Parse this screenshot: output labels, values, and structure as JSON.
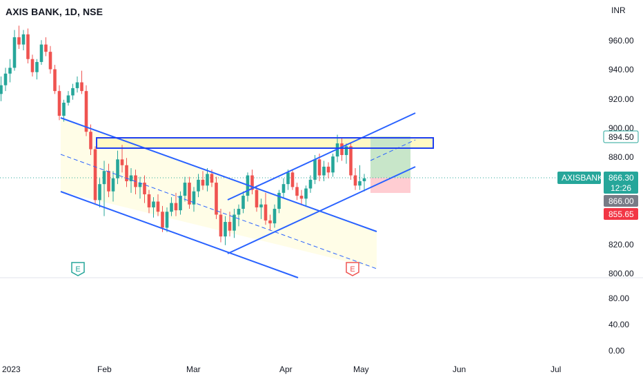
{
  "header": {
    "title": "AXIS BANK, 1D, NSE",
    "currency": "INR"
  },
  "colors": {
    "up": "#26a69a",
    "down": "#ef5350",
    "channel": "#2962ff",
    "zone_fill": "#fff9c4",
    "channel_fill": "#fffde7",
    "target_fill": "#c8e6c9",
    "stop_fill": "#ffcdd2"
  },
  "chart_data": {
    "type": "candlestick",
    "y_axis": {
      "ticks": [
        "960.00",
        "940.00",
        "920.00",
        "900.00",
        "880.00",
        "820.00",
        "800.00"
      ],
      "range": [
        800,
        980
      ]
    },
    "volume_axis": {
      "ticks": [
        "80.00",
        "40.00",
        "0.00"
      ]
    },
    "x_axis": {
      "ticks": [
        "2023",
        "Feb",
        "Mar",
        "Apr",
        "May",
        "Jun",
        "Jul"
      ]
    },
    "price_tags": [
      {
        "label": "894.50",
        "value": 894.5,
        "style": "outline-green"
      },
      {
        "label": "866.30",
        "value": 866.3,
        "style": "green"
      },
      {
        "label": "12:26",
        "value": 862.0,
        "style": "green"
      },
      {
        "label": "866.00",
        "value": 858.5,
        "style": "gray"
      },
      {
        "label": "855.65",
        "value": 855.65,
        "style": "red"
      }
    ],
    "symbol_tag": "AXISBANK",
    "earnings_markers": [
      "E",
      "E"
    ],
    "candles": [
      [
        -4,
        913,
        929,
        908,
        924
      ],
      [
        -3,
        924,
        936,
        919,
        930
      ],
      [
        -2,
        930,
        942,
        926,
        938
      ],
      [
        -1,
        938,
        948,
        932,
        942
      ],
      [
        0,
        942,
        968,
        940,
        963
      ],
      [
        1,
        963,
        971,
        955,
        958
      ],
      [
        2,
        958,
        968,
        954,
        965
      ],
      [
        3,
        965,
        969,
        945,
        948
      ],
      [
        4,
        948,
        951,
        936,
        939
      ],
      [
        5,
        939,
        948,
        934,
        946
      ],
      [
        6,
        946,
        961,
        944,
        958
      ],
      [
        7,
        958,
        963,
        950,
        953
      ],
      [
        8,
        953,
        957,
        938,
        941
      ],
      [
        9,
        941,
        944,
        924,
        926
      ],
      [
        10,
        926,
        930,
        906,
        909
      ],
      [
        11,
        909,
        920,
        905,
        918
      ],
      [
        12,
        918,
        926,
        916,
        923
      ],
      [
        13,
        923,
        931,
        920,
        928
      ],
      [
        14,
        928,
        936,
        925,
        932
      ],
      [
        15,
        932,
        940,
        924,
        926
      ],
      [
        16,
        926,
        930,
        895,
        898
      ],
      [
        17,
        898,
        903,
        882,
        886
      ],
      [
        18,
        886,
        888,
        848,
        851
      ],
      [
        19,
        851,
        866,
        846,
        862
      ],
      [
        20,
        862,
        878,
        840,
        871
      ],
      [
        21,
        871,
        876,
        853,
        857
      ],
      [
        22,
        857,
        871,
        850,
        866
      ],
      [
        23,
        866,
        885,
        862,
        879
      ],
      [
        24,
        879,
        889,
        870,
        875
      ],
      [
        25,
        875,
        880,
        860,
        864
      ],
      [
        26,
        864,
        873,
        856,
        868
      ],
      [
        27,
        868,
        872,
        855,
        860
      ],
      [
        28,
        860,
        867,
        852,
        863
      ],
      [
        29,
        863,
        868,
        849,
        855
      ],
      [
        30,
        855,
        858,
        842,
        846
      ],
      [
        31,
        846,
        853,
        839,
        850
      ],
      [
        32,
        850,
        855,
        840,
        843
      ],
      [
        33,
        843,
        847,
        829,
        832
      ],
      [
        34,
        832,
        846,
        829,
        843
      ],
      [
        35,
        843,
        853,
        840,
        849
      ],
      [
        36,
        849,
        856,
        840,
        844
      ],
      [
        37,
        844,
        857,
        841,
        854
      ],
      [
        38,
        854,
        867,
        850,
        863
      ],
      [
        39,
        863,
        867,
        845,
        848
      ],
      [
        40,
        848,
        860,
        843,
        857
      ],
      [
        41,
        857,
        869,
        853,
        865
      ],
      [
        42,
        865,
        871,
        858,
        861
      ],
      [
        43,
        861,
        873,
        857,
        869
      ],
      [
        44,
        869,
        872,
        860,
        863
      ],
      [
        45,
        863,
        867,
        838,
        841
      ],
      [
        46,
        841,
        845,
        822,
        826
      ],
      [
        47,
        826,
        840,
        820,
        836
      ],
      [
        48,
        836,
        843,
        826,
        830
      ],
      [
        49,
        830,
        845,
        825,
        841
      ],
      [
        50,
        841,
        848,
        833,
        845
      ],
      [
        51,
        845,
        857,
        842,
        854
      ],
      [
        52,
        854,
        870,
        850,
        868
      ],
      [
        53,
        868,
        872,
        855,
        858
      ],
      [
        54,
        858,
        861,
        843,
        846
      ],
      [
        55,
        846,
        852,
        838,
        848
      ],
      [
        56,
        848,
        856,
        834,
        837
      ],
      [
        57,
        837,
        841,
        830,
        835
      ],
      [
        58,
        835,
        848,
        832,
        845
      ],
      [
        59,
        845,
        858,
        842,
        856
      ],
      [
        60,
        856,
        866,
        852,
        862
      ],
      [
        61,
        862,
        872,
        858,
        870
      ],
      [
        62,
        870,
        872,
        858,
        860
      ],
      [
        63,
        860,
        863,
        851,
        854
      ],
      [
        64,
        854,
        858,
        848,
        852
      ],
      [
        65,
        852,
        861,
        847,
        859
      ],
      [
        66,
        859,
        868,
        856,
        865
      ],
      [
        67,
        865,
        882,
        862,
        879
      ],
      [
        68,
        879,
        883,
        864,
        868
      ],
      [
        69,
        868,
        878,
        864,
        874
      ],
      [
        70,
        874,
        877,
        866,
        870
      ],
      [
        71,
        870,
        883,
        867,
        881
      ],
      [
        72,
        881,
        896,
        877,
        890
      ],
      [
        73,
        890,
        894,
        878,
        882
      ],
      [
        74,
        882,
        890,
        876,
        888
      ],
      [
        75,
        888,
        890,
        865,
        868
      ],
      [
        76,
        868,
        873,
        858,
        861
      ],
      [
        77,
        861,
        875,
        858,
        864
      ],
      [
        78,
        864,
        869,
        857,
        866
      ]
    ]
  }
}
